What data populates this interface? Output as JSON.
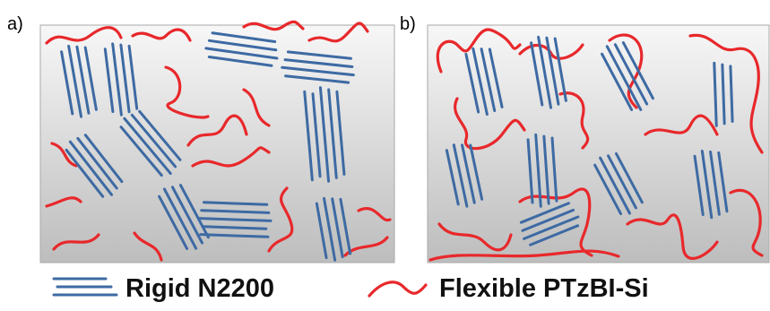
{
  "panels": [
    {
      "label": "a)"
    },
    {
      "label": "b)"
    }
  ],
  "legend": [
    {
      "label": "Rigid N2200"
    },
    {
      "label": "Flexible PTzBI-Si"
    }
  ]
}
